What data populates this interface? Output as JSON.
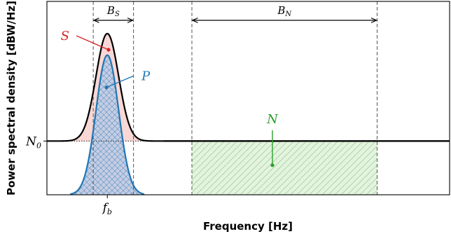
{
  "chart_data": {
    "type": "area",
    "title": "",
    "xlabel": "Frequency [Hz]",
    "ylabel": "Power spectral density [dBW/Hz]",
    "xlim": [
      0,
      10
    ],
    "ylim": [
      -1.0,
      2.6
    ],
    "grid": false,
    "legend": "none",
    "noise_floor": {
      "label": "N",
      "subscript": "0",
      "value": 0
    },
    "x_tick": {
      "label": "f",
      "subscript": "b",
      "value": 1.5
    },
    "signal_plus_noise": {
      "name": "S",
      "center": 1.5,
      "sigma": 0.28,
      "peak_above_floor": 2.0,
      "floor": 0
    },
    "signal": {
      "name": "P",
      "center": 1.5,
      "sigma": 0.28,
      "peak": 1.6,
      "floor": -1.0
    },
    "noise_band": {
      "name": "N",
      "range": [
        3.6,
        8.2
      ],
      "level": 0
    },
    "bandwidths": [
      {
        "label": "B",
        "subscript": "S",
        "range": [
          1.15,
          2.15
        ]
      },
      {
        "label": "B",
        "subscript": "N",
        "range": [
          3.6,
          8.2
        ]
      }
    ],
    "annotations": [
      {
        "label": "S",
        "target": [
          1.53,
          1.7
        ]
      },
      {
        "label": "P",
        "target": [
          1.48,
          1.0
        ]
      },
      {
        "label": "N",
        "target": [
          5.6,
          -0.45
        ]
      }
    ],
    "colors": {
      "S": "#d62728",
      "S_fill": "#f8d7d5",
      "P": "#1f77b4",
      "P_fill": "#c7cde3",
      "N": "#2ca02c",
      "N_fill": "#e4f3df"
    }
  }
}
